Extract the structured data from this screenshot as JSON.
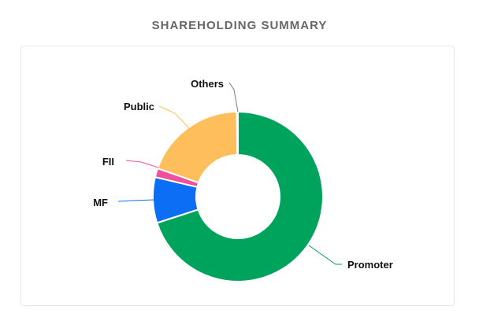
{
  "page": {
    "title": "SHAREHOLDING SUMMARY"
  },
  "chart_data": {
    "type": "pie",
    "style": "donut",
    "title": "SHAREHOLDING SUMMARY",
    "slices": [
      {
        "label": "Promoter",
        "value": 70.0,
        "color": "#00a35c"
      },
      {
        "label": "MF",
        "value": 8.7,
        "color": "#0b6ef5"
      },
      {
        "label": "FII",
        "value": 1.7,
        "color": "#f0509b"
      },
      {
        "label": "Public",
        "value": 19.4,
        "color": "#ffbe5c"
      },
      {
        "label": "Others",
        "value": 0.2,
        "color": "#6b7d93"
      }
    ],
    "legend": "none",
    "labels": "outside-with-leader-lines"
  }
}
